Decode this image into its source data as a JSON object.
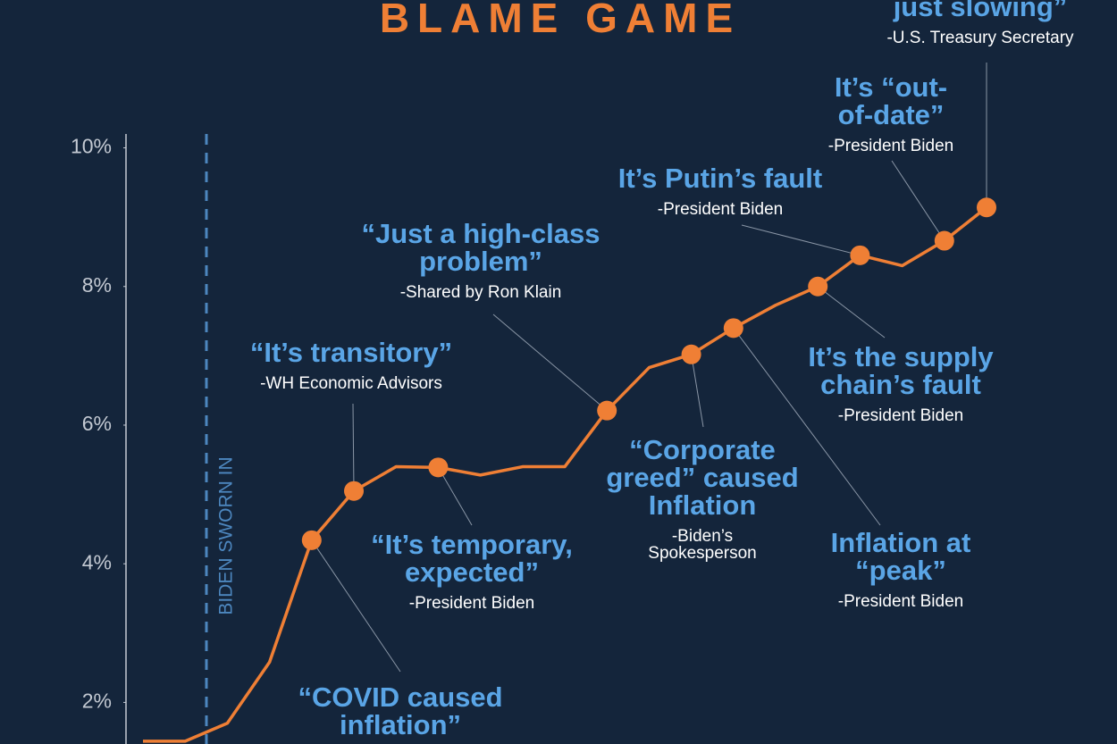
{
  "chart_data": {
    "type": "line",
    "title": "BLAME GAME",
    "categories": [
      null,
      null,
      null,
      null,
      null,
      null,
      null,
      null,
      null,
      null,
      null,
      null,
      null,
      null,
      null,
      null,
      null,
      null,
      null,
      null,
      null
    ],
    "values": [
      1.44,
      1.44,
      1.7,
      2.58,
      4.34,
      5.05,
      5.4,
      5.39,
      5.28,
      5.4,
      5.4,
      6.21,
      6.83,
      7.02,
      7.4,
      7.73,
      8.0,
      8.45,
      8.3,
      8.66,
      9.14
    ],
    "color": "#ef7f35",
    "ylim": [
      1.4,
      10.2
    ],
    "yticks": [
      {
        "value": 2,
        "label": "2%"
      },
      {
        "value": 4,
        "label": "4%"
      },
      {
        "value": 6,
        "label": "6%"
      },
      {
        "value": 8,
        "label": "8%"
      },
      {
        "value": 10,
        "label": "10%"
      }
    ],
    "event_label": "BIDEN SWORN IN",
    "annotations": [
      {
        "lines": [
          "“COVID caused",
          "inflation”"
        ],
        "source": []
      },
      {
        "lines": [
          "“It’s temporary,",
          "expected”"
        ],
        "source": [
          "-President Biden"
        ]
      },
      {
        "lines": [
          "“It’s transitory”"
        ],
        "source": [
          "-WH Economic Advisors"
        ]
      },
      {
        "lines": [
          "“Just a high-class",
          "problem”"
        ],
        "source": [
          "-Shared by Ron Klain"
        ]
      },
      {
        "lines": [
          "“Corporate",
          "greed” caused",
          "Inflation"
        ],
        "source": [
          "-Biden’s",
          "Spokesperson"
        ]
      },
      {
        "lines": [
          "It’s Putin’s fault"
        ],
        "source": [
          "-President Biden"
        ]
      },
      {
        "lines": [
          "It’s “out-",
          "of-date”"
        ],
        "source": [
          "-President Biden"
        ]
      },
      {
        "lines": [
          "just slowing”"
        ],
        "source": [
          "-U.S. Treasury Secretary"
        ]
      },
      {
        "lines": [
          "It’s the supply",
          "chain’s fault"
        ],
        "source": [
          "-President Biden"
        ]
      },
      {
        "lines": [
          "Inflation at",
          "“peak”"
        ],
        "source": [
          "-President Biden"
        ]
      }
    ]
  }
}
